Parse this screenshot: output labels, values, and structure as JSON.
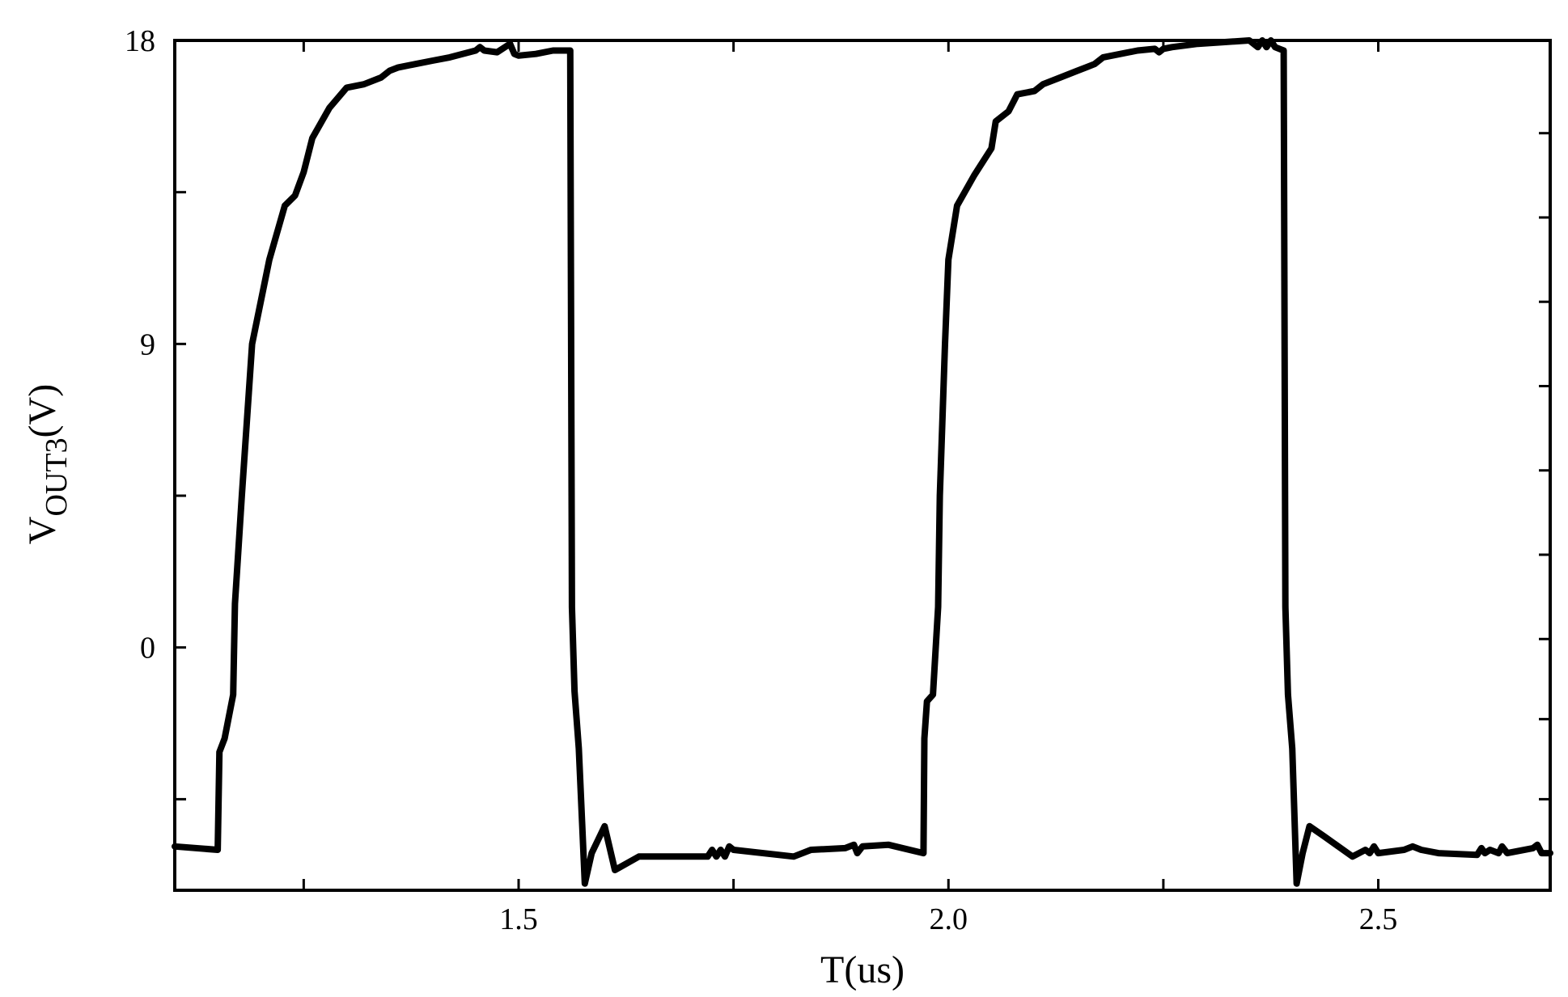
{
  "chart_data": {
    "type": "line",
    "title": "",
    "xlabel": "T(us)",
    "ylabel": {
      "main": "V",
      "subscript": "OUT3",
      "suffix": "(V)"
    },
    "xlim": [
      1.1,
      2.7
    ],
    "ylim": [
      -7.2,
      18
    ],
    "xticks": [
      {
        "value": 1.5,
        "label": "1.5"
      },
      {
        "value": 2.0,
        "label": "2.0"
      },
      {
        "value": 2.5,
        "label": "2.5"
      }
    ],
    "yticks": [
      {
        "value": 0,
        "label": "0"
      },
      {
        "value": 9,
        "label": "9"
      },
      {
        "value": 18,
        "label": "18"
      }
    ],
    "x_minor_ticks": [
      1.25,
      1.5,
      1.75,
      2.0,
      2.25,
      2.5
    ],
    "y_minor_ticks": [
      -4.5,
      4.5,
      13.5
    ],
    "y_right_ticks": [
      -4.5,
      -2.125,
      0.25,
      2.75,
      5.25,
      7.75,
      10.25,
      12.75,
      15.25
    ],
    "grid": false,
    "legend": "none",
    "line_color": "#000000",
    "series": [
      {
        "x": [
          1.1,
          1.15,
          1.152,
          1.158,
          1.168,
          1.17,
          1.178,
          1.19,
          1.21,
          1.228,
          1.24,
          1.25,
          1.26,
          1.28,
          1.3,
          1.32,
          1.34,
          1.35,
          1.36,
          1.38,
          1.4,
          1.42,
          1.45,
          1.455,
          1.46,
          1.475,
          1.49,
          1.495,
          1.5,
          1.52,
          1.54,
          1.56,
          1.562,
          1.565,
          1.57,
          1.577,
          1.585,
          1.6,
          1.612,
          1.64,
          1.68,
          1.72,
          1.725,
          1.73,
          1.735,
          1.74,
          1.745,
          1.75,
          1.82,
          1.84,
          1.88,
          1.89,
          1.894,
          1.9,
          1.93,
          1.971,
          1.972,
          1.975,
          1.982,
          1.988,
          1.99,
          1.996,
          2.0,
          2.01,
          2.03,
          2.05,
          2.055,
          2.07,
          2.08,
          2.1,
          2.11,
          2.13,
          2.15,
          2.16,
          2.17,
          2.18,
          2.2,
          2.22,
          2.24,
          2.245,
          2.25,
          2.26,
          2.29,
          2.32,
          2.35,
          2.36,
          2.365,
          2.37,
          2.375,
          2.38,
          2.39,
          2.392,
          2.395,
          2.4,
          2.405,
          2.412,
          2.42,
          2.437,
          2.47,
          2.485,
          2.49,
          2.495,
          2.5,
          2.53,
          2.54,
          2.55,
          2.57,
          2.615,
          2.62,
          2.624,
          2.63,
          2.64,
          2.644,
          2.65,
          2.68,
          2.685,
          2.69,
          2.7
        ],
        "y": [
          -5.9,
          -6.0,
          -3.1,
          -2.7,
          -1.4,
          1.3,
          4.5,
          9.0,
          11.5,
          13.1,
          13.4,
          14.1,
          15.1,
          16.0,
          16.6,
          16.7,
          16.9,
          17.1,
          17.2,
          17.3,
          17.4,
          17.5,
          17.7,
          17.8,
          17.7,
          17.65,
          17.9,
          17.6,
          17.55,
          17.6,
          17.7,
          17.7,
          1.2,
          -1.3,
          -3.0,
          -7.0,
          -6.1,
          -5.3,
          -6.6,
          -6.2,
          -6.2,
          -6.2,
          -6.0,
          -6.2,
          -6.0,
          -6.2,
          -5.9,
          -6.0,
          -6.2,
          -6.0,
          -5.95,
          -5.85,
          -6.1,
          -5.9,
          -5.85,
          -6.1,
          -2.7,
          -1.6,
          -1.4,
          1.2,
          4.5,
          9.0,
          11.5,
          13.1,
          14.0,
          14.8,
          15.6,
          15.9,
          16.4,
          16.5,
          16.7,
          16.9,
          17.1,
          17.2,
          17.3,
          17.5,
          17.6,
          17.7,
          17.75,
          17.65,
          17.75,
          17.8,
          17.9,
          17.95,
          18.0,
          17.8,
          18.0,
          17.8,
          18.0,
          17.8,
          17.7,
          1.2,
          -1.4,
          -3.0,
          -7.0,
          -6.1,
          -5.3,
          -5.6,
          -6.2,
          -6.0,
          -6.1,
          -5.9,
          -6.1,
          -6.0,
          -5.9,
          -6.0,
          -6.1,
          -6.15,
          -5.95,
          -6.1,
          -6.0,
          -6.1,
          -5.9,
          -6.1,
          -5.95,
          -5.85,
          -6.1,
          -6.1
        ]
      }
    ]
  }
}
